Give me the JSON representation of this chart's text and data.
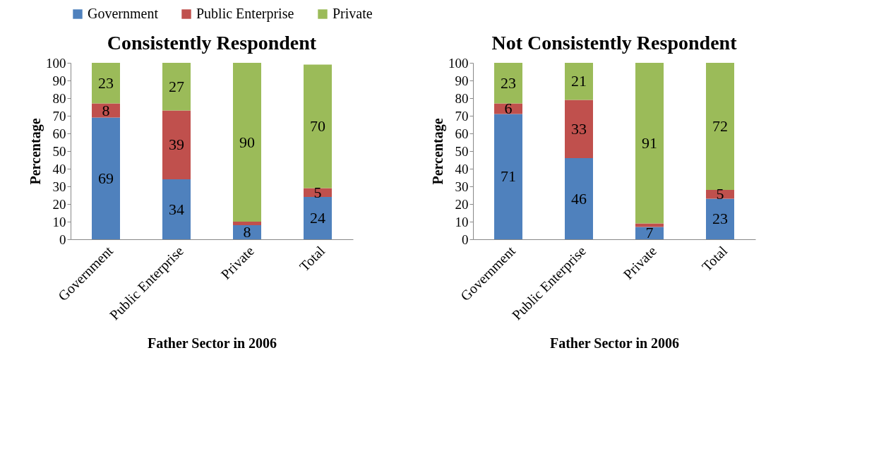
{
  "chart_data": [
    {
      "type": "bar",
      "title": "Consistently Respondent",
      "xlabel": "Father Sector in 2006",
      "ylabel": "Percentage",
      "stacked": true,
      "legend": "top",
      "categories": [
        "Government",
        "Public Enterprise",
        "Private",
        "Total"
      ],
      "ylim": [
        0,
        100
      ],
      "yticks": [
        0,
        10,
        20,
        30,
        40,
        50,
        60,
        70,
        80,
        90,
        100
      ],
      "series": [
        {
          "name": "Government",
          "color": "#4f81bd",
          "values": [
            69,
            34,
            8,
            24
          ],
          "value_labels": [
            "69",
            "34",
            "8",
            "24"
          ]
        },
        {
          "name": "Public Enterprise",
          "color": "#c0504d",
          "values": [
            8,
            39,
            2,
            5
          ],
          "value_labels": [
            "8",
            "39",
            null,
            "5"
          ]
        },
        {
          "name": "Private",
          "color": "#9bbb59",
          "values": [
            23,
            27,
            90,
            70
          ],
          "value_labels": [
            "23",
            "27",
            "90",
            "70"
          ]
        }
      ]
    },
    {
      "type": "bar",
      "title": "Not Consistently Respondent",
      "xlabel": "Father Sector in 2006",
      "ylabel": "Percentage",
      "stacked": true,
      "legend": "top",
      "categories": [
        "Government",
        "Public Enterprise",
        "Private",
        "Total"
      ],
      "ylim": [
        0,
        100
      ],
      "yticks": [
        0,
        10,
        20,
        30,
        40,
        50,
        60,
        70,
        80,
        90,
        100
      ],
      "series": [
        {
          "name": "Government",
          "color": "#4f81bd",
          "values": [
            71,
            46,
            7,
            23
          ],
          "value_labels": [
            "71",
            "46",
            "7",
            "23"
          ]
        },
        {
          "name": "Public Enterprise",
          "color": "#c0504d",
          "values": [
            6,
            33,
            2,
            5
          ],
          "value_labels": [
            "6",
            "33",
            null,
            "5"
          ]
        },
        {
          "name": "Private",
          "color": "#9bbb59",
          "values": [
            23,
            21,
            91,
            72
          ],
          "value_labels": [
            "23",
            "21",
            "91",
            "72"
          ]
        }
      ]
    }
  ]
}
